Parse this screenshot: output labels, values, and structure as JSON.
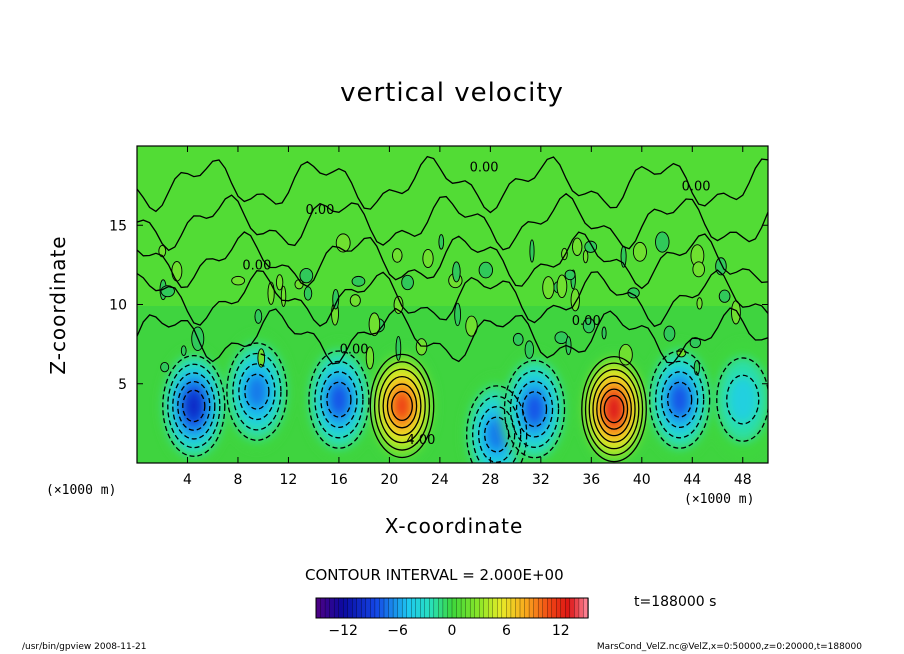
{
  "chart_data": {
    "type": "heatmap",
    "title": "vertical velocity",
    "xlabel": "X-coordinate",
    "ylabel": "Z-coordinate",
    "x_unit": "(×1000 m)",
    "y_unit": "(×1000 m)",
    "xlim": [
      0,
      50
    ],
    "ylim": [
      0,
      20
    ],
    "x_ticks": [
      4,
      8,
      12,
      16,
      20,
      24,
      28,
      32,
      36,
      40,
      44,
      48
    ],
    "y_ticks": [
      5,
      10,
      15
    ],
    "contour_interval_text": "CONTOUR INTERVAL = 2.000E+00",
    "contour_labels": [
      {
        "text": "0.00",
        "x": 14.5,
        "z": 15.7
      },
      {
        "text": "0.00",
        "x": 9.5,
        "z": 12.2
      },
      {
        "text": "0.00",
        "x": 27.5,
        "z": 18.4
      },
      {
        "text": "0.00",
        "x": 44.3,
        "z": 17.2
      },
      {
        "text": "0.00",
        "x": 17.2,
        "z": 6.9
      },
      {
        "text": "0.00",
        "x": 35.6,
        "z": 8.7
      },
      {
        "text": "4.00",
        "x": 22.5,
        "z": 1.2
      }
    ],
    "cells": [
      {
        "x": 4.5,
        "z": 3.6,
        "w": -10.0
      },
      {
        "x": 9.5,
        "z": 4.5,
        "w": -7.0
      },
      {
        "x": 16.0,
        "z": 4.0,
        "w": -8.0
      },
      {
        "x": 21.0,
        "z": 3.6,
        "w": 11.0
      },
      {
        "x": 28.5,
        "z": 1.8,
        "w": -7.0
      },
      {
        "x": 31.5,
        "z": 3.4,
        "w": -8.0
      },
      {
        "x": 37.8,
        "z": 3.4,
        "w": 13.0
      },
      {
        "x": 43.0,
        "z": 4.0,
        "w": -8.0
      },
      {
        "x": 48.0,
        "z": 4.0,
        "w": -4.0
      }
    ],
    "colorbar": {
      "min": -15,
      "max": 15,
      "tick_values": [
        -12,
        -6,
        0,
        6,
        12
      ],
      "tick_labels": [
        "−12",
        "−6",
        "0",
        "6",
        "12"
      ]
    },
    "grid": false
  },
  "time_label": "t=188000  s",
  "footer_left": "/usr/bin/gpview   2008-11-21",
  "footer_right": "MarsCond_VelZ.nc@VelZ,x=0:50000,z=0:20000,t=188000"
}
